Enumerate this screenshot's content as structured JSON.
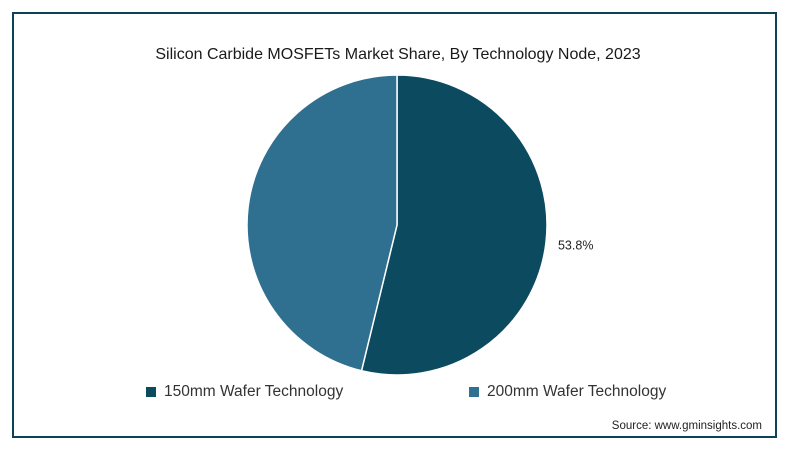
{
  "chart_data": {
    "type": "pie",
    "title": "Silicon Carbide MOSFETs Market Share, By Technology Node, 2023",
    "slices": [
      {
        "name": "150mm Wafer Technology",
        "value": 53.8,
        "label": "53.8%",
        "color": "#0b4a5f"
      },
      {
        "name": "200mm Wafer Technology",
        "value": 46.2,
        "label": "",
        "color": "#2f6f8f"
      }
    ],
    "legend_placement": "bottom",
    "start_angle_deg": 0
  },
  "source": "Source: www.gminsights.com"
}
